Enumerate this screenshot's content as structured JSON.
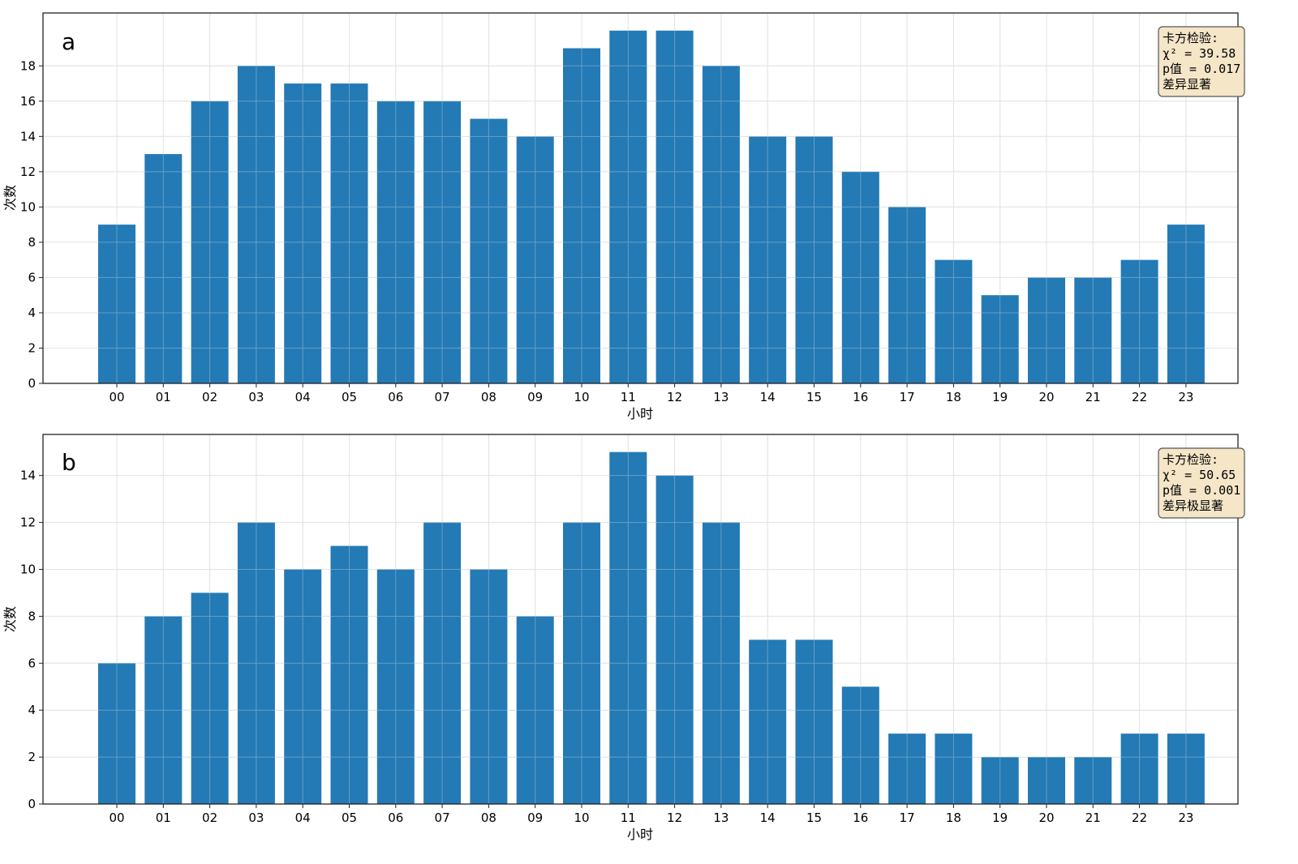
{
  "colors": {
    "bar": "#1f77b4",
    "grid": "#e3e3e3",
    "annotation_bg": "#f5e6c8",
    "annotation_border": "#555555"
  },
  "chart_data": [
    {
      "type": "bar",
      "panel_label": "a",
      "xlabel": "小时",
      "ylabel": "次数",
      "categories": [
        "00",
        "01",
        "02",
        "03",
        "04",
        "05",
        "06",
        "07",
        "08",
        "09",
        "10",
        "11",
        "12",
        "13",
        "14",
        "15",
        "16",
        "17",
        "18",
        "19",
        "20",
        "21",
        "22",
        "23"
      ],
      "values": [
        9,
        13,
        16,
        18,
        17,
        17,
        16,
        16,
        15,
        14,
        19,
        20,
        20,
        18,
        14,
        14,
        12,
        10,
        7,
        5,
        6,
        6,
        7,
        9
      ],
      "ylim": [
        0,
        21
      ],
      "yticks": [
        0,
        2,
        4,
        6,
        8,
        10,
        12,
        14,
        16,
        18
      ],
      "grid": true,
      "annotation": {
        "position": "top-right",
        "lines": [
          "卡方检验:",
          "χ² = 39.58",
          "p值 = 0.017",
          "差异显著"
        ]
      }
    },
    {
      "type": "bar",
      "panel_label": "b",
      "xlabel": "小时",
      "ylabel": "次数",
      "categories": [
        "00",
        "01",
        "02",
        "03",
        "04",
        "05",
        "06",
        "07",
        "08",
        "09",
        "10",
        "11",
        "12",
        "13",
        "14",
        "15",
        "16",
        "17",
        "18",
        "19",
        "20",
        "21",
        "22",
        "23"
      ],
      "values": [
        6,
        8,
        9,
        12,
        10,
        11,
        10,
        12,
        10,
        8,
        12,
        15,
        14,
        12,
        7,
        7,
        5,
        3,
        3,
        2,
        2,
        2,
        3,
        3
      ],
      "ylim": [
        0,
        15.75
      ],
      "yticks": [
        0,
        2,
        4,
        6,
        8,
        10,
        12,
        14
      ],
      "grid": true,
      "annotation": {
        "position": "top-right",
        "lines": [
          "卡方检验:",
          "χ² = 50.65",
          "p值 = 0.001",
          "差异极显著"
        ]
      }
    }
  ]
}
